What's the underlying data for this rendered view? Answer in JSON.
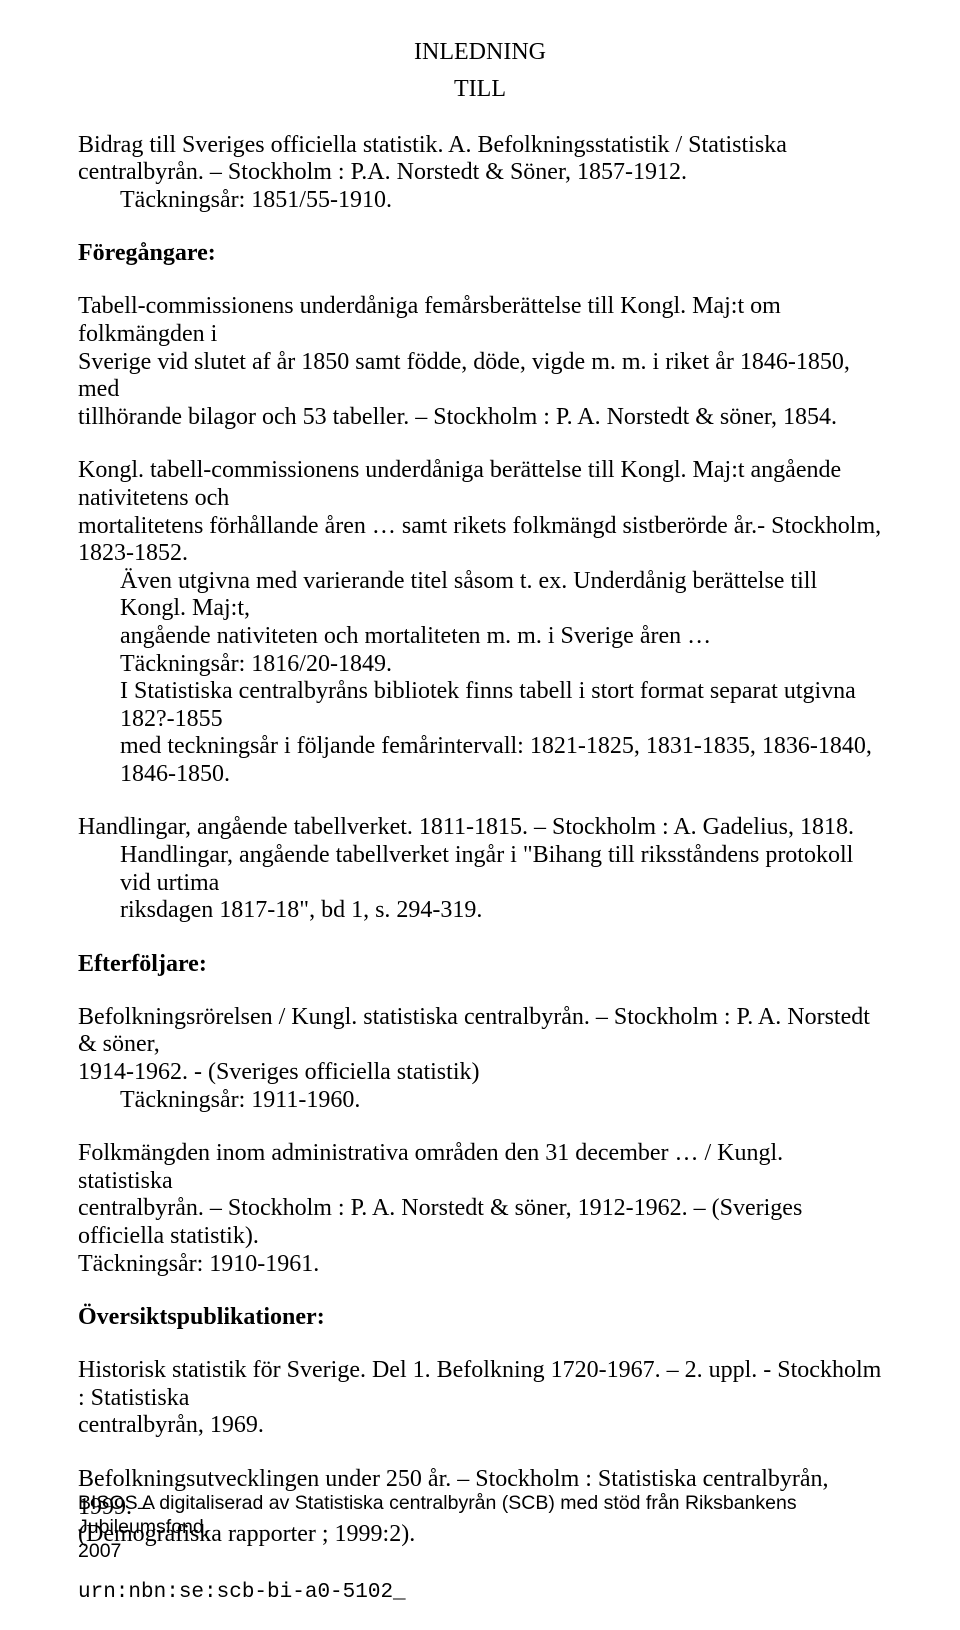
{
  "heading": "INLEDNING",
  "subheading": "TILL",
  "intro": {
    "l1": "Bidrag till Sveriges officiella statistik. A. Befolkningsstatistik / Statistiska",
    "l2": "centralbyrån. – Stockholm : P.A. Norstedt & Söner, 1857-1912.",
    "l3": "Täckningsår: 1851/55-1910."
  },
  "foregangare_label": "Föregångare:",
  "fg_p1": {
    "l1": "Tabell-commissionens underdåniga femårsberättelse till Kongl. Maj:t om folkmängden i",
    "l2": "Sverige vid slutet af år 1850 samt födde, döde, vigde m. m. i riket år 1846-1850, med",
    "l3": "tillhörande bilagor och 53 tabeller. – Stockholm : P. A. Norstedt & söner, 1854."
  },
  "fg_p2": {
    "l1": "Kongl. tabell-commissionens underdåniga berättelse till Kongl. Maj:t angående nativitetens och",
    "l2": "mortalitetens förhållande åren … samt rikets folkmängd sistberörde år.- Stockholm, 1823-1852.",
    "i1": "Även utgivna med varierande titel såsom t. ex. Underdånig berättelse till Kongl. Maj:t,",
    "i2": "angående nativiteten och mortaliteten m. m. i Sverige åren …",
    "i3": "Täckningsår: 1816/20-1849.",
    "i4": "I Statistiska centralbyråns bibliotek finns tabell i stort format separat utgivna 182?-1855",
    "i5": "med teckningsår i följande femårintervall: 1821-1825, 1831-1835, 1836-1840, 1846-1850."
  },
  "fg_p3": {
    "l1": "Handlingar, angående tabellverket. 1811-1815. – Stockholm : A. Gadelius, 1818.",
    "i1": "Handlingar, angående tabellverket ingår i \"Bihang till riksståndens protokoll vid urtima",
    "i2": "riksdagen 1817-18\", bd 1, s. 294-319."
  },
  "efterfoljare_label": "Efterföljare:",
  "ef_p1": {
    "l1": "Befolkningsrörelsen / Kungl. statistiska centralbyrån. – Stockholm : P. A. Norstedt & söner,",
    "l2": "1914-1962. - (Sveriges officiella statistik)",
    "i1": "Täckningsår: 1911-1960."
  },
  "ef_p2": {
    "l1": "Folkmängden inom administrativa områden den 31 december … / Kungl. statistiska",
    "l2": "centralbyrån. – Stockholm : P. A. Norstedt & söner, 1912-1962. – (Sveriges officiella statistik).",
    "l3": "Täckningsår: 1910-1961."
  },
  "oversikt_label": "Översiktspublikationer:",
  "ov_p1": {
    "l1": "Historisk statistik för Sverige. Del 1. Befolkning 1720-1967. – 2. uppl. - Stockholm : Statistiska",
    "l2": "centralbyrån, 1969."
  },
  "ov_p2": {
    "l1": "Befolkningsutvecklingen under 250 år. – Stockholm : Statistiska centralbyrån, 1999. –",
    "l2": "(Demografiska rapporter ; 1999:2)."
  },
  "footer": {
    "l1": "BISOS A digitaliserad av Statistiska centralbyrån (SCB) med stöd från Riksbankens Jubileumsfond,",
    "l2": "2007",
    "urn": "urn:nbn:se:scb-bi-a0-5102_"
  }
}
